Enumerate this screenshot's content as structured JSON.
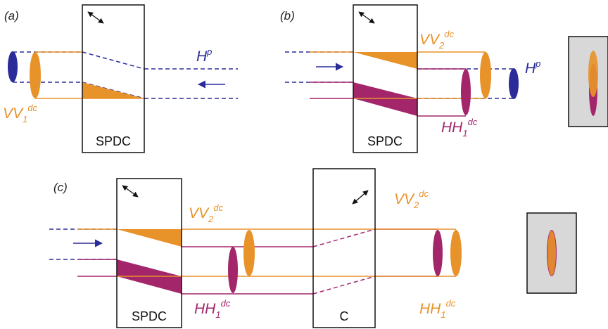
{
  "colors": {
    "pump": "#2b2b9a",
    "vv": "#e8922a",
    "hh": "#a3266b",
    "crystal": "#111111",
    "inset_bg": "#d8d8d8"
  },
  "panels": {
    "a": "(a)",
    "b": "(b)",
    "c": "(c)"
  },
  "crystals": {
    "spdc": "SPDC",
    "compensator": "C"
  },
  "beams": {
    "pump": {
      "main": "H",
      "sup": "p"
    },
    "vv1": {
      "main": "VV",
      "sub": "1",
      "sup": "dc"
    },
    "vv2": {
      "main": "VV",
      "sub": "2",
      "sup": "dc"
    },
    "hh1": {
      "main": "HH",
      "sub": "1",
      "sup": "dc"
    }
  },
  "icons": {
    "optic_axis": "double-arrow-icon",
    "direction": "arrow-icon"
  }
}
